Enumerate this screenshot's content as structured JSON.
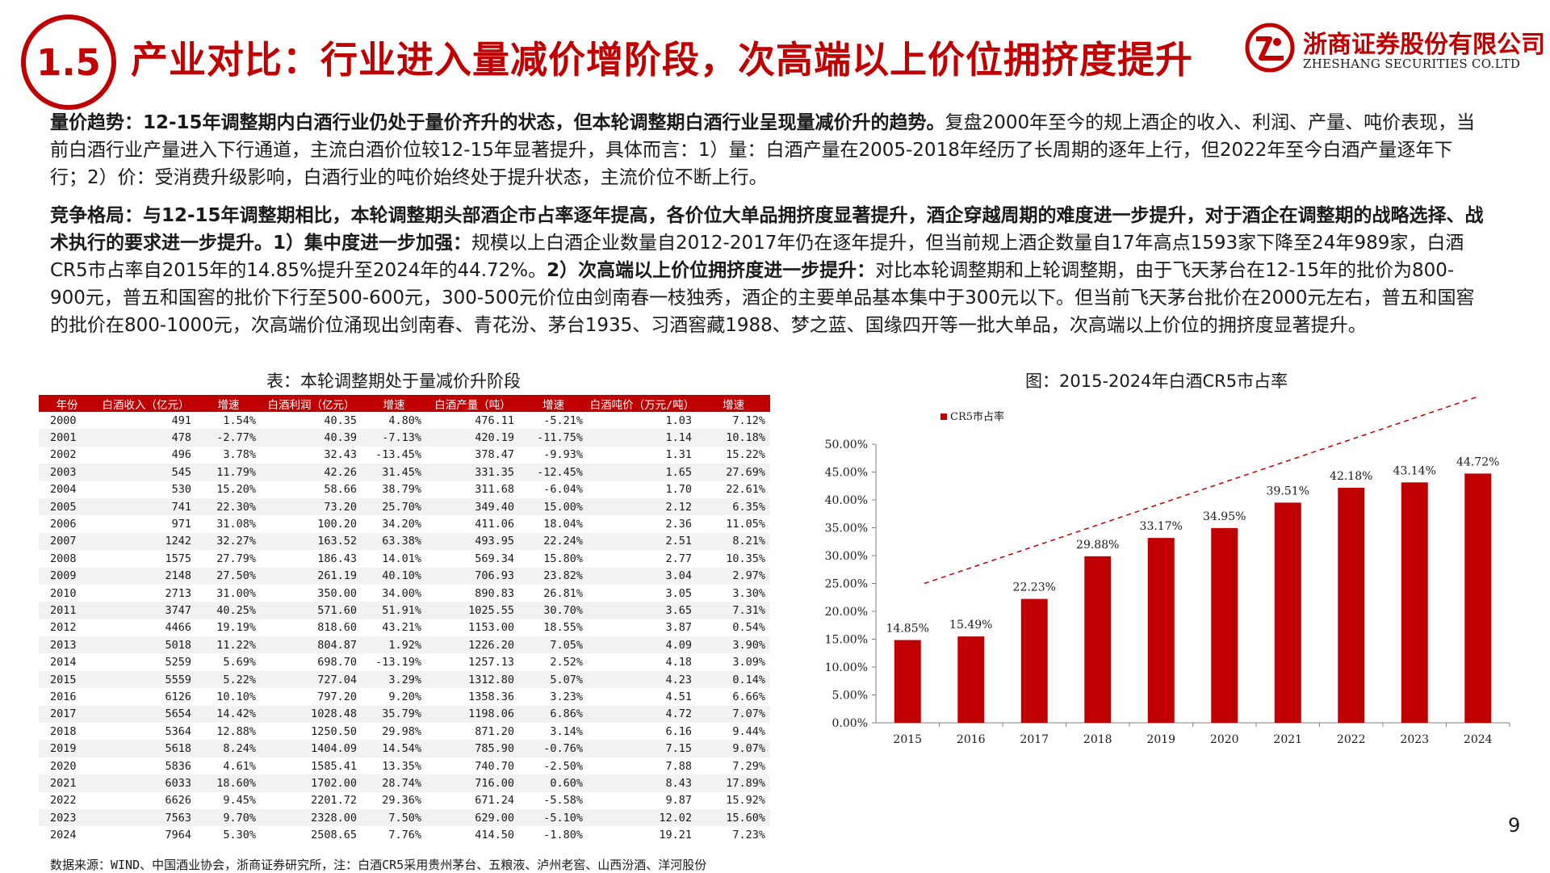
{
  "header": {
    "section_number": "1.5",
    "title": "产业对比：行业进入量减价增阶段，次高端以上价位拥挤度提升",
    "logo_cn": "浙商证券股份有限公司",
    "logo_en": "ZHESHANG SECURITIES CO.LTD",
    "brand_color": "#c00000"
  },
  "paragraphs": {
    "p1_bold": "量价趋势：12-15年调整期内白酒行业仍处于量价齐升的状态，但本轮调整期白酒行业呈现量减价升的趋势。",
    "p1_text": "复盘2000年至今的规上酒企的收入、利润、产量、吨价表现，当前白酒行业产量进入下行通道，主流白酒价位较12-15年显著提升，具体而言：1）量：白酒产量在2005-2018年经历了长周期的逐年上行，但2022年至今白酒产量逐年下行；2）价：受消费升级影响，白酒行业的吨价始终处于提升状态，主流价位不断上行。",
    "p2_bold1": "竞争格局：与12-15年调整期相比，本轮调整期头部酒企市占率逐年提高，各价位大单品拥挤度显著提升，酒企穿越周期的难度进一步提升，对于酒企在调整期的战略选择、战术执行的要求进一步提升。1）集中度进一步加强：",
    "p2_text1": "规模以上白酒企业数量自2012-2017年仍在逐年提升，但当前规上酒企数量自17年高点1593家下降至24年989家，白酒CR5市占率自2015年的14.85%提升至2024年的44.72%。",
    "p2_bold2": "2）次高端以上价位拥挤度进一步提升：",
    "p2_text2": "对比本轮调整期和上轮调整期，由于飞天茅台在12-15年的批价为800-900元，普五和国窖的批价下行至500-600元，300-500元价位由剑南春一枝独秀，酒企的主要单品基本集中于300元以下。但当前飞天茅台批价在2000元左右，普五和国窖的批价在800-1000元，次高端价位涌现出剑南春、青花汾、茅台1935、习酒窖藏1988、梦之蓝、国缘四开等一批大单品，次高端以上价位的拥挤度显著提升。"
  },
  "table": {
    "caption": "表：本轮调整期处于量减价升阶段",
    "headers": [
      "年份",
      "白酒收入（亿元）",
      "增速",
      "白酒利润（亿元）",
      "增速",
      "白酒产量（吨）",
      "增速",
      "白酒吨价（万元/吨）",
      "增速"
    ],
    "rows": [
      [
        "2000",
        "491",
        "1.54%",
        "40.35",
        "4.80%",
        "476.11",
        "-5.21%",
        "1.03",
        "7.12%"
      ],
      [
        "2001",
        "478",
        "-2.77%",
        "40.39",
        "-7.13%",
        "420.19",
        "-11.75%",
        "1.14",
        "10.18%"
      ],
      [
        "2002",
        "496",
        "3.78%",
        "32.43",
        "-13.45%",
        "378.47",
        "-9.93%",
        "1.31",
        "15.22%"
      ],
      [
        "2003",
        "545",
        "11.79%",
        "42.26",
        "31.45%",
        "331.35",
        "-12.45%",
        "1.65",
        "27.69%"
      ],
      [
        "2004",
        "530",
        "15.20%",
        "58.66",
        "38.79%",
        "311.68",
        "-6.04%",
        "1.70",
        "22.61%"
      ],
      [
        "2005",
        "741",
        "22.30%",
        "73.20",
        "25.70%",
        "349.40",
        "15.00%",
        "2.12",
        "6.35%"
      ],
      [
        "2006",
        "971",
        "31.08%",
        "100.20",
        "34.20%",
        "411.06",
        "18.04%",
        "2.36",
        "11.05%"
      ],
      [
        "2007",
        "1242",
        "32.27%",
        "163.52",
        "63.38%",
        "493.95",
        "22.24%",
        "2.51",
        "8.21%"
      ],
      [
        "2008",
        "1575",
        "27.79%",
        "186.43",
        "14.01%",
        "569.34",
        "15.80%",
        "2.77",
        "10.35%"
      ],
      [
        "2009",
        "2148",
        "27.50%",
        "261.19",
        "40.10%",
        "706.93",
        "23.82%",
        "3.04",
        "2.97%"
      ],
      [
        "2010",
        "2713",
        "31.00%",
        "350.00",
        "34.00%",
        "890.83",
        "26.81%",
        "3.05",
        "3.30%"
      ],
      [
        "2011",
        "3747",
        "40.25%",
        "571.60",
        "51.91%",
        "1025.55",
        "30.70%",
        "3.65",
        "7.31%"
      ],
      [
        "2012",
        "4466",
        "19.19%",
        "818.60",
        "43.21%",
        "1153.00",
        "18.55%",
        "3.87",
        "0.54%"
      ],
      [
        "2013",
        "5018",
        "11.22%",
        "804.87",
        "1.92%",
        "1226.20",
        "7.05%",
        "4.09",
        "3.90%"
      ],
      [
        "2014",
        "5259",
        "5.69%",
        "698.70",
        "-13.19%",
        "1257.13",
        "2.52%",
        "4.18",
        "3.09%"
      ],
      [
        "2015",
        "5559",
        "5.22%",
        "727.04",
        "3.29%",
        "1312.80",
        "5.07%",
        "4.23",
        "0.14%"
      ],
      [
        "2016",
        "6126",
        "10.10%",
        "797.20",
        "9.20%",
        "1358.36",
        "3.23%",
        "4.51",
        "6.66%"
      ],
      [
        "2017",
        "5654",
        "14.42%",
        "1028.48",
        "35.79%",
        "1198.06",
        "6.86%",
        "4.72",
        "7.07%"
      ],
      [
        "2018",
        "5364",
        "12.88%",
        "1250.50",
        "29.98%",
        "871.20",
        "3.14%",
        "6.16",
        "9.44%"
      ],
      [
        "2019",
        "5618",
        "8.24%",
        "1404.09",
        "14.54%",
        "785.90",
        "-0.76%",
        "7.15",
        "9.07%"
      ],
      [
        "2020",
        "5836",
        "4.61%",
        "1585.41",
        "13.35%",
        "740.70",
        "-2.50%",
        "7.88",
        "7.29%"
      ],
      [
        "2021",
        "6033",
        "18.60%",
        "1702.00",
        "28.74%",
        "716.00",
        "0.60%",
        "8.43",
        "17.89%"
      ],
      [
        "2022",
        "6626",
        "9.45%",
        "2201.72",
        "29.36%",
        "671.24",
        "-5.58%",
        "9.87",
        "15.92%"
      ],
      [
        "2023",
        "7563",
        "9.70%",
        "2328.00",
        "7.50%",
        "629.00",
        "-5.10%",
        "12.02",
        "15.60%"
      ],
      [
        "2024",
        "7964",
        "5.30%",
        "2508.65",
        "7.76%",
        "414.50",
        "-1.80%",
        "19.21",
        "7.23%"
      ]
    ]
  },
  "chart_caption": "图：2015-2024年白酒CR5市占率",
  "chart_data": {
    "type": "bar",
    "categories": [
      "2015",
      "2016",
      "2017",
      "2018",
      "2019",
      "2020",
      "2021",
      "2022",
      "2023",
      "2024"
    ],
    "series": [
      {
        "name": "CR5市占率",
        "values": [
          14.85,
          15.49,
          22.23,
          29.88,
          33.17,
          34.95,
          39.51,
          42.18,
          43.14,
          44.72
        ]
      }
    ],
    "value_labels": [
      "14.85%",
      "15.49%",
      "22.23%",
      "29.88%",
      "33.17%",
      "34.95%",
      "39.51%",
      "42.18%",
      "43.14%",
      "44.72%"
    ],
    "ylim": [
      0,
      50
    ],
    "yticks": [
      "0.00%",
      "5.00%",
      "10.00%",
      "15.00%",
      "20.00%",
      "25.00%",
      "30.00%",
      "35.00%",
      "40.00%",
      "45.00%",
      "50.00%"
    ],
    "grid": false,
    "legend": "top-left",
    "trend_line": "dashed, rising",
    "bar_color": "#c00000"
  },
  "source": "数据来源：WIND、中国酒业协会，浙商证券研究所，注：白酒CR5采用贵州茅台、五粮液、泸州老窖、山西汾酒、洋河股份",
  "page_number": "9"
}
